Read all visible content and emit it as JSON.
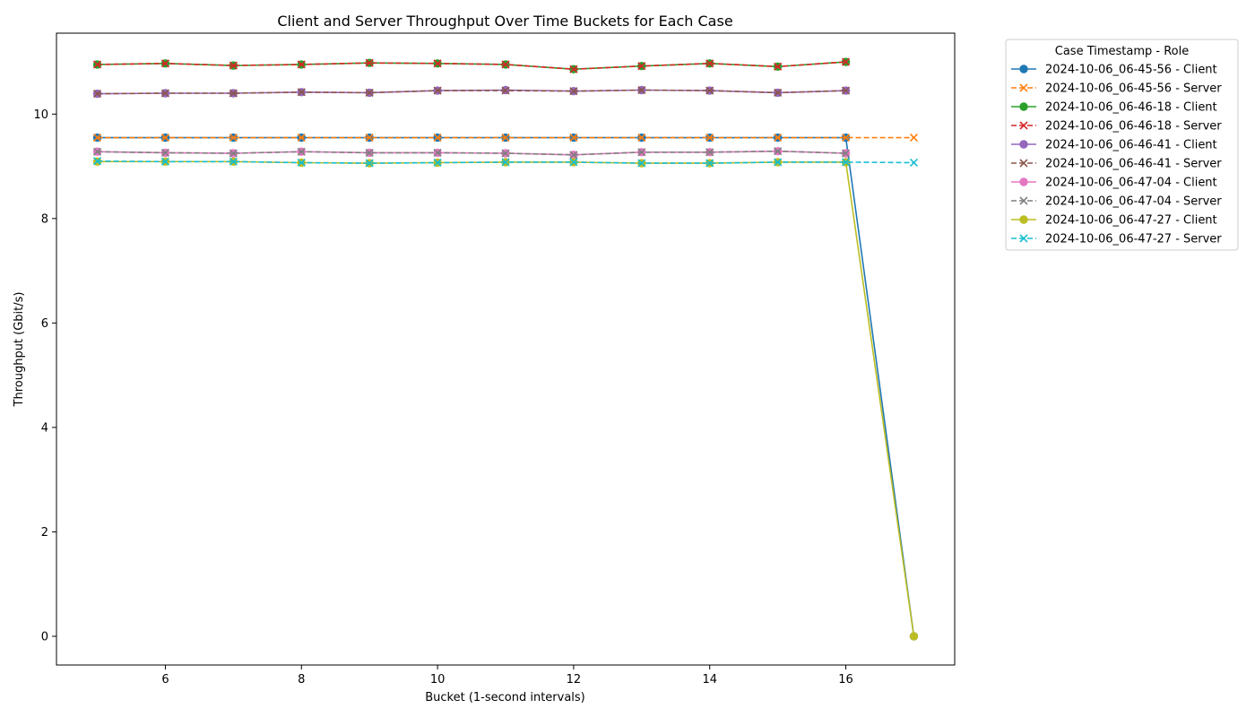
{
  "chart_data": {
    "type": "line",
    "title": "Client and Server Throughput Over Time Buckets for Each Case",
    "xlabel": "Bucket (1-second intervals)",
    "ylabel": "Throughput (Gbit/s)",
    "xlim": [
      4.4,
      17.6
    ],
    "ylim": [
      -0.55,
      11.55
    ],
    "xticks": [
      6,
      8,
      10,
      12,
      14,
      16
    ],
    "yticks": [
      0,
      2,
      4,
      6,
      8,
      10
    ],
    "grid": false,
    "legend_title": "Case Timestamp - Role",
    "legend_position": "outside-top-right",
    "series": [
      {
        "name": "2024-10-06_06-45-56 - Client",
        "color": "#1f77b4",
        "dash": "solid",
        "marker": "circle",
        "x": [
          5,
          6,
          7,
          8,
          9,
          10,
          11,
          12,
          13,
          14,
          15,
          16,
          17
        ],
        "y": [
          9.55,
          9.55,
          9.55,
          9.55,
          9.55,
          9.55,
          9.55,
          9.55,
          9.55,
          9.55,
          9.55,
          9.55,
          0
        ]
      },
      {
        "name": "2024-10-06_06-45-56 - Server",
        "color": "#ff7f0e",
        "dash": "dashed",
        "marker": "x",
        "x": [
          5,
          6,
          7,
          8,
          9,
          10,
          11,
          12,
          13,
          14,
          15,
          16,
          17
        ],
        "y": [
          9.55,
          9.55,
          9.55,
          9.55,
          9.55,
          9.55,
          9.55,
          9.55,
          9.55,
          9.55,
          9.55,
          9.55,
          9.55
        ]
      },
      {
        "name": "2024-10-06_06-46-18 - Client",
        "color": "#2ca02c",
        "dash": "solid",
        "marker": "circle",
        "x": [
          5,
          6,
          7,
          8,
          9,
          10,
          11,
          12,
          13,
          14,
          15,
          16
        ],
        "y": [
          10.95,
          10.97,
          10.93,
          10.95,
          10.98,
          10.97,
          10.95,
          10.86,
          10.92,
          10.97,
          10.91,
          11.0
        ]
      },
      {
        "name": "2024-10-06_06-46-18 - Server",
        "color": "#d62728",
        "dash": "dashed",
        "marker": "x",
        "x": [
          5,
          6,
          7,
          8,
          9,
          10,
          11,
          12,
          13,
          14,
          15,
          16
        ],
        "y": [
          10.95,
          10.97,
          10.93,
          10.95,
          10.98,
          10.97,
          10.95,
          10.86,
          10.92,
          10.97,
          10.91,
          11.0
        ]
      },
      {
        "name": "2024-10-06_06-46-41 - Client",
        "color": "#9467bd",
        "dash": "solid",
        "marker": "circle",
        "x": [
          5,
          6,
          7,
          8,
          9,
          10,
          11,
          12,
          13,
          14,
          15,
          16
        ],
        "y": [
          10.39,
          10.4,
          10.4,
          10.42,
          10.41,
          10.45,
          10.46,
          10.44,
          10.46,
          10.45,
          10.41,
          10.45
        ]
      },
      {
        "name": "2024-10-06_06-46-41 - Server",
        "color": "#8c564b",
        "dash": "dashed",
        "marker": "x",
        "x": [
          5,
          6,
          7,
          8,
          9,
          10,
          11,
          12,
          13,
          14,
          15,
          16
        ],
        "y": [
          10.39,
          10.4,
          10.4,
          10.42,
          10.41,
          10.45,
          10.45,
          10.44,
          10.46,
          10.45,
          10.41,
          10.45
        ]
      },
      {
        "name": "2024-10-06_06-47-04 - Client",
        "color": "#e377c2",
        "dash": "solid",
        "marker": "circle",
        "x": [
          5,
          6,
          7,
          8,
          9,
          10,
          11,
          12,
          13,
          14,
          15,
          16
        ],
        "y": [
          9.28,
          9.26,
          9.25,
          9.28,
          9.26,
          9.26,
          9.25,
          9.22,
          9.27,
          9.27,
          9.29,
          9.25
        ]
      },
      {
        "name": "2024-10-06_06-47-04 - Server",
        "color": "#7f7f7f",
        "dash": "dashed",
        "marker": "x",
        "x": [
          5,
          6,
          7,
          8,
          9,
          10,
          11,
          12,
          13,
          14,
          15,
          16
        ],
        "y": [
          9.28,
          9.26,
          9.25,
          9.28,
          9.26,
          9.26,
          9.25,
          9.22,
          9.27,
          9.27,
          9.29,
          9.25
        ]
      },
      {
        "name": "2024-10-06_06-47-27 - Client",
        "color": "#bcbd22",
        "dash": "solid",
        "marker": "circle",
        "x": [
          5,
          6,
          7,
          8,
          9,
          10,
          11,
          12,
          13,
          14,
          15,
          16,
          17
        ],
        "y": [
          9.09,
          9.09,
          9.09,
          9.07,
          9.06,
          9.07,
          9.08,
          9.08,
          9.06,
          9.06,
          9.08,
          9.08,
          0
        ]
      },
      {
        "name": "2024-10-06_06-47-27 - Server",
        "color": "#17becf",
        "dash": "dashed",
        "marker": "x",
        "x": [
          5,
          6,
          7,
          8,
          9,
          10,
          11,
          12,
          13,
          14,
          15,
          16,
          17
        ],
        "y": [
          9.1,
          9.09,
          9.09,
          9.07,
          9.06,
          9.07,
          9.08,
          9.08,
          9.06,
          9.06,
          9.08,
          9.08,
          9.07
        ]
      }
    ]
  }
}
